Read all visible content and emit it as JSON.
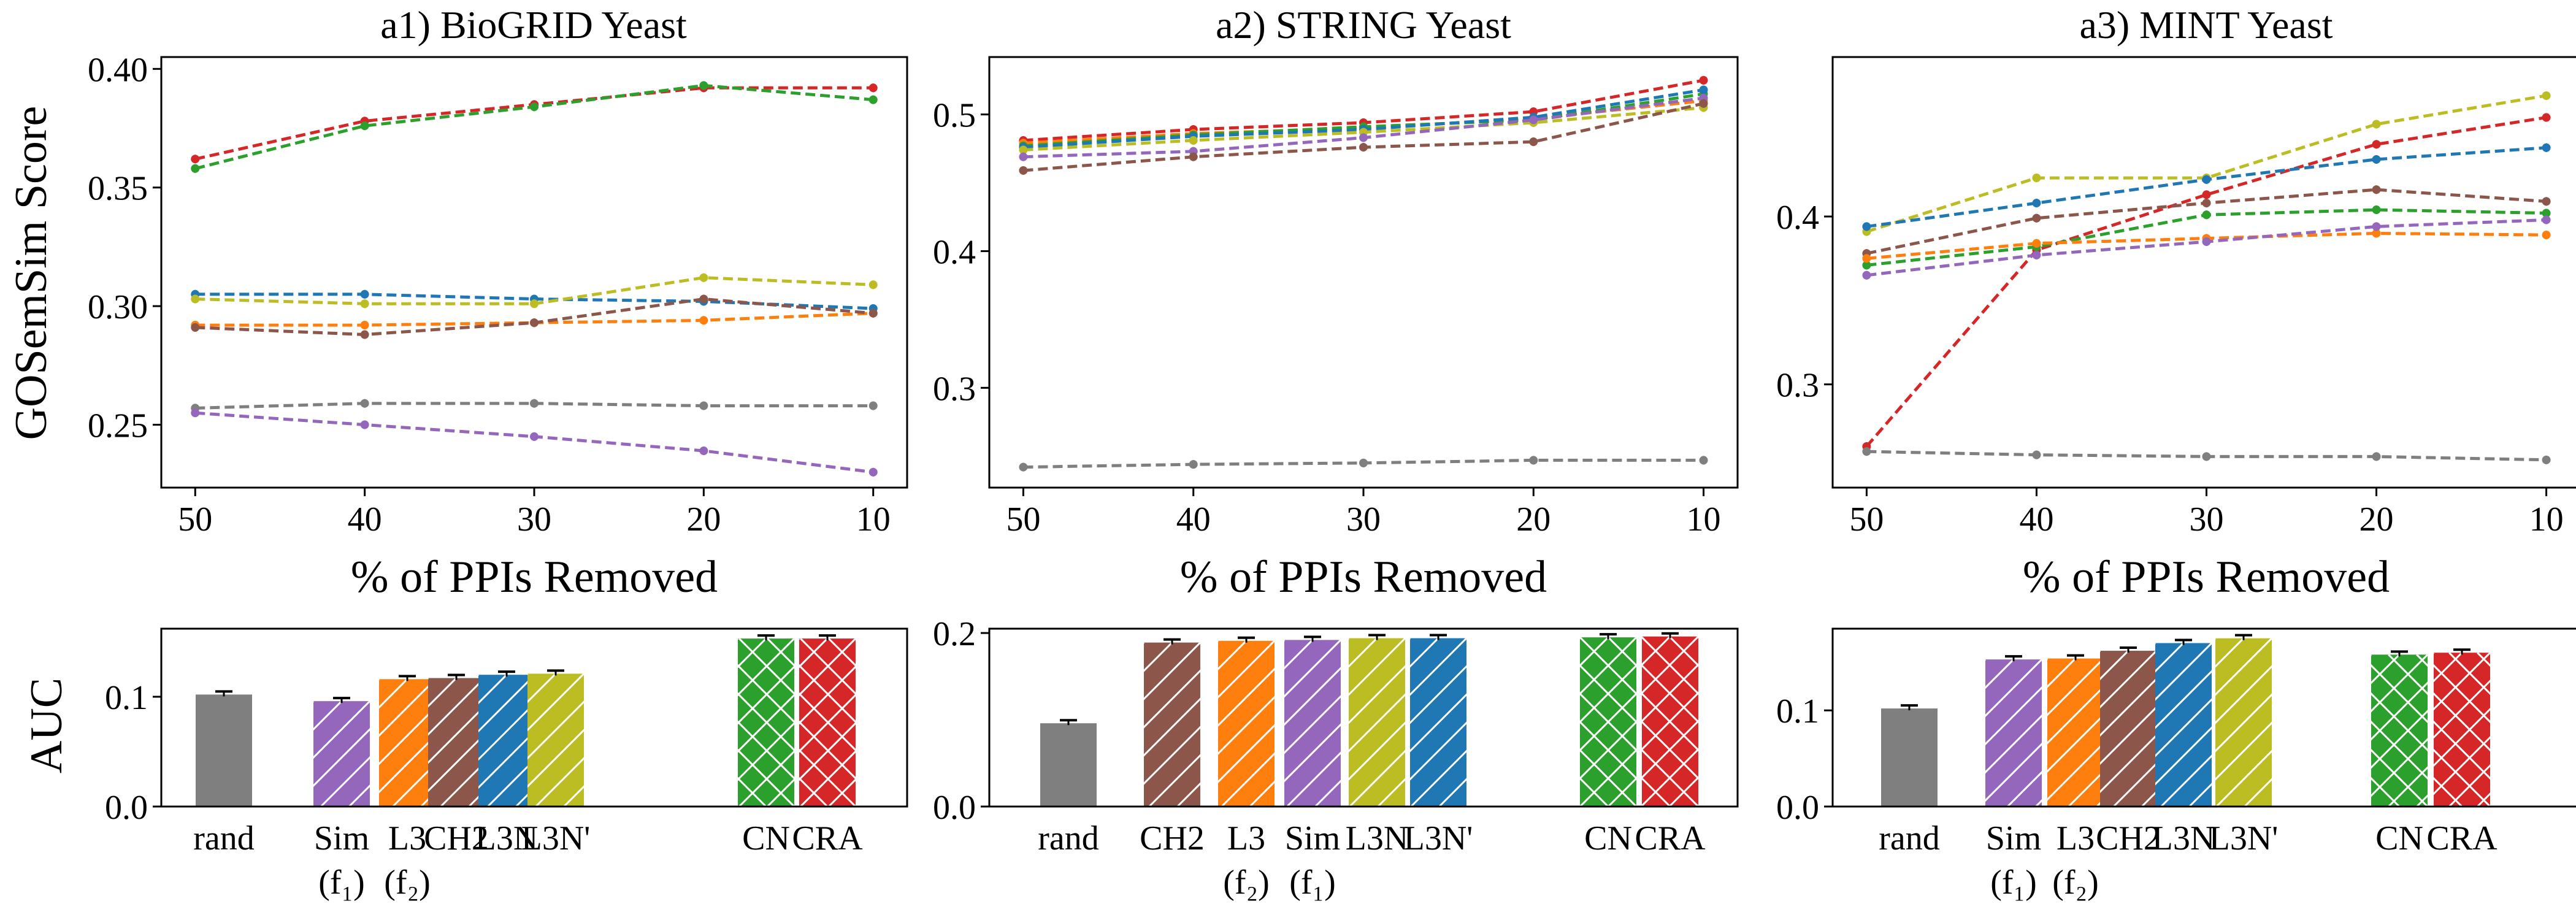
{
  "figure": {
    "panel_ylabel_top": "GOSemSim Score",
    "panel_ylabel_bottom": "AUC"
  },
  "chart_data": [
    {
      "type": "line",
      "title": "a1) BioGRID Yeast",
      "xlabel": "% of PPIs Removed",
      "ylabel": "GOSemSim Score",
      "x": [
        50,
        40,
        30,
        20,
        10
      ],
      "xlim": [
        52,
        8
      ],
      "ylim": [
        0.2235,
        0.405
      ],
      "yticks": [
        0.25,
        0.3,
        0.35,
        0.4
      ],
      "ytick_labels": [
        "0.25",
        "0.30",
        "0.35",
        "0.40"
      ],
      "grid": false,
      "series": [
        {
          "color": "#d62728",
          "values": [
            0.362,
            0.378,
            0.385,
            0.392,
            0.392
          ]
        },
        {
          "color": "#2ca02c",
          "values": [
            0.358,
            0.376,
            0.384,
            0.393,
            0.387
          ]
        },
        {
          "color": "#1f77b4",
          "values": [
            0.305,
            0.305,
            0.303,
            0.302,
            0.299
          ]
        },
        {
          "color": "#bcbd22",
          "values": [
            0.303,
            0.301,
            0.301,
            0.312,
            0.309
          ]
        },
        {
          "color": "#ff7f0e",
          "values": [
            0.292,
            0.292,
            0.293,
            0.294,
            0.297
          ]
        },
        {
          "color": "#8c564b",
          "values": [
            0.291,
            0.288,
            0.293,
            0.303,
            0.297
          ]
        },
        {
          "color": "#7f7f7f",
          "values": [
            0.257,
            0.259,
            0.259,
            0.258,
            0.258
          ]
        },
        {
          "color": "#9467bd",
          "values": [
            0.255,
            0.25,
            0.245,
            0.239,
            0.23
          ]
        }
      ]
    },
    {
      "type": "line",
      "title": "a2) STRING Yeast",
      "xlabel": "% of PPIs Removed",
      "ylabel": "",
      "x": [
        50,
        40,
        30,
        20,
        10
      ],
      "xlim": [
        52,
        8
      ],
      "ylim": [
        0.227,
        0.542
      ],
      "yticks": [
        0.3,
        0.4,
        0.5
      ],
      "ytick_labels": [
        "0.3",
        "0.4",
        "0.5"
      ],
      "grid": false,
      "series": [
        {
          "color": "#d62728",
          "values": [
            0.481,
            0.489,
            0.494,
            0.502,
            0.525
          ]
        },
        {
          "color": "#ff7f0e",
          "values": [
            0.479,
            0.486,
            0.49,
            0.497,
            0.51
          ]
        },
        {
          "color": "#2ca02c",
          "values": [
            0.477,
            0.485,
            0.491,
            0.496,
            0.515
          ]
        },
        {
          "color": "#1f77b4",
          "values": [
            0.476,
            0.484,
            0.489,
            0.498,
            0.518
          ]
        },
        {
          "color": "#bcbd22",
          "values": [
            0.474,
            0.481,
            0.487,
            0.494,
            0.505
          ]
        },
        {
          "color": "#9467bd",
          "values": [
            0.469,
            0.473,
            0.483,
            0.496,
            0.512
          ]
        },
        {
          "color": "#8c564b",
          "values": [
            0.459,
            0.469,
            0.476,
            0.48,
            0.508
          ]
        },
        {
          "color": "#7f7f7f",
          "values": [
            0.242,
            0.244,
            0.245,
            0.247,
            0.247
          ]
        }
      ]
    },
    {
      "type": "line",
      "title": "a3) MINT Yeast",
      "xlabel": "% of PPIs Removed",
      "ylabel": "",
      "x": [
        50,
        40,
        30,
        20,
        10
      ],
      "xlim": [
        52,
        8
      ],
      "ylim": [
        0.2385,
        0.495
      ],
      "yticks": [
        0.3,
        0.4
      ],
      "ytick_labels": [
        "0.3",
        "0.4"
      ],
      "grid": false,
      "series": [
        {
          "color": "#bcbd22",
          "values": [
            0.391,
            0.423,
            0.423,
            0.455,
            0.472
          ]
        },
        {
          "color": "#d62728",
          "values": [
            0.263,
            0.38,
            0.413,
            0.443,
            0.459
          ]
        },
        {
          "color": "#1f77b4",
          "values": [
            0.394,
            0.408,
            0.422,
            0.434,
            0.441
          ]
        },
        {
          "color": "#8c564b",
          "values": [
            0.378,
            0.399,
            0.408,
            0.416,
            0.409
          ]
        },
        {
          "color": "#2ca02c",
          "values": [
            0.371,
            0.382,
            0.401,
            0.404,
            0.402
          ]
        },
        {
          "color": "#ff7f0e",
          "values": [
            0.375,
            0.384,
            0.387,
            0.39,
            0.389
          ]
        },
        {
          "color": "#9467bd",
          "values": [
            0.365,
            0.377,
            0.385,
            0.394,
            0.398
          ]
        },
        {
          "color": "#7f7f7f",
          "values": [
            0.26,
            0.258,
            0.257,
            0.257,
            0.255
          ]
        }
      ]
    },
    {
      "type": "bar",
      "title": "",
      "xlabel": "",
      "ylabel": "AUC",
      "ylim": [
        0,
        0.162
      ],
      "yticks": [
        0,
        0.1
      ],
      "ytick_labels": [
        "0.0",
        "0.1"
      ],
      "categories": [
        "rand",
        "Sim",
        "L3",
        "CH2",
        "L3N",
        "L3N'",
        "CN",
        "CRA"
      ],
      "values": [
        0.102,
        0.096,
        0.116,
        0.117,
        0.12,
        0.121,
        0.153,
        0.153
      ],
      "colors": [
        "#7f7f7f",
        "#9467bd",
        "#ff7f0e",
        "#8c564b",
        "#1f77b4",
        "#bcbd22",
        "#2ca02c",
        "#d62728"
      ],
      "hatch": [
        "none",
        "diag",
        "diag",
        "diag",
        "diag",
        "diag",
        "cross",
        "cross"
      ],
      "sublabels": [
        "",
        "(f₁)",
        "(f₂)",
        "",
        "",
        "",
        "",
        ""
      ]
    },
    {
      "type": "bar",
      "title": "",
      "xlabel": "",
      "ylabel": "",
      "ylim": [
        0,
        0.205
      ],
      "yticks": [
        0,
        0.2
      ],
      "ytick_labels": [
        "0.0",
        "0.2"
      ],
      "categories": [
        "rand",
        "CH2",
        "L3",
        "Sim",
        "L3N",
        "L3N'",
        "CN",
        "CRA"
      ],
      "values": [
        0.096,
        0.189,
        0.191,
        0.192,
        0.194,
        0.194,
        0.195,
        0.196
      ],
      "colors": [
        "#7f7f7f",
        "#8c564b",
        "#ff7f0e",
        "#9467bd",
        "#bcbd22",
        "#1f77b4",
        "#2ca02c",
        "#d62728"
      ],
      "hatch": [
        "none",
        "diag",
        "diag",
        "diag",
        "diag",
        "diag",
        "cross",
        "cross"
      ],
      "sublabels": [
        "",
        "",
        "(f₂)",
        "(f₁)",
        "",
        "",
        "",
        ""
      ]
    },
    {
      "type": "bar",
      "title": "",
      "xlabel": "",
      "ylabel": "",
      "ylim": [
        0,
        0.185
      ],
      "yticks": [
        0,
        0.1
      ],
      "ytick_labels": [
        "0.0",
        "0.1"
      ],
      "categories": [
        "rand",
        "Sim",
        "L3",
        "CH2",
        "L3N",
        "L3N'",
        "CN",
        "CRA"
      ],
      "values": [
        0.102,
        0.153,
        0.154,
        0.162,
        0.17,
        0.175,
        0.158,
        0.16
      ],
      "colors": [
        "#7f7f7f",
        "#9467bd",
        "#ff7f0e",
        "#8c564b",
        "#1f77b4",
        "#bcbd22",
        "#2ca02c",
        "#d62728"
      ],
      "hatch": [
        "none",
        "diag",
        "diag",
        "diag",
        "diag",
        "diag",
        "cross",
        "cross"
      ],
      "sublabels": [
        "",
        "(f₁)",
        "(f₂)",
        "",
        "",
        "",
        "",
        ""
      ]
    }
  ]
}
